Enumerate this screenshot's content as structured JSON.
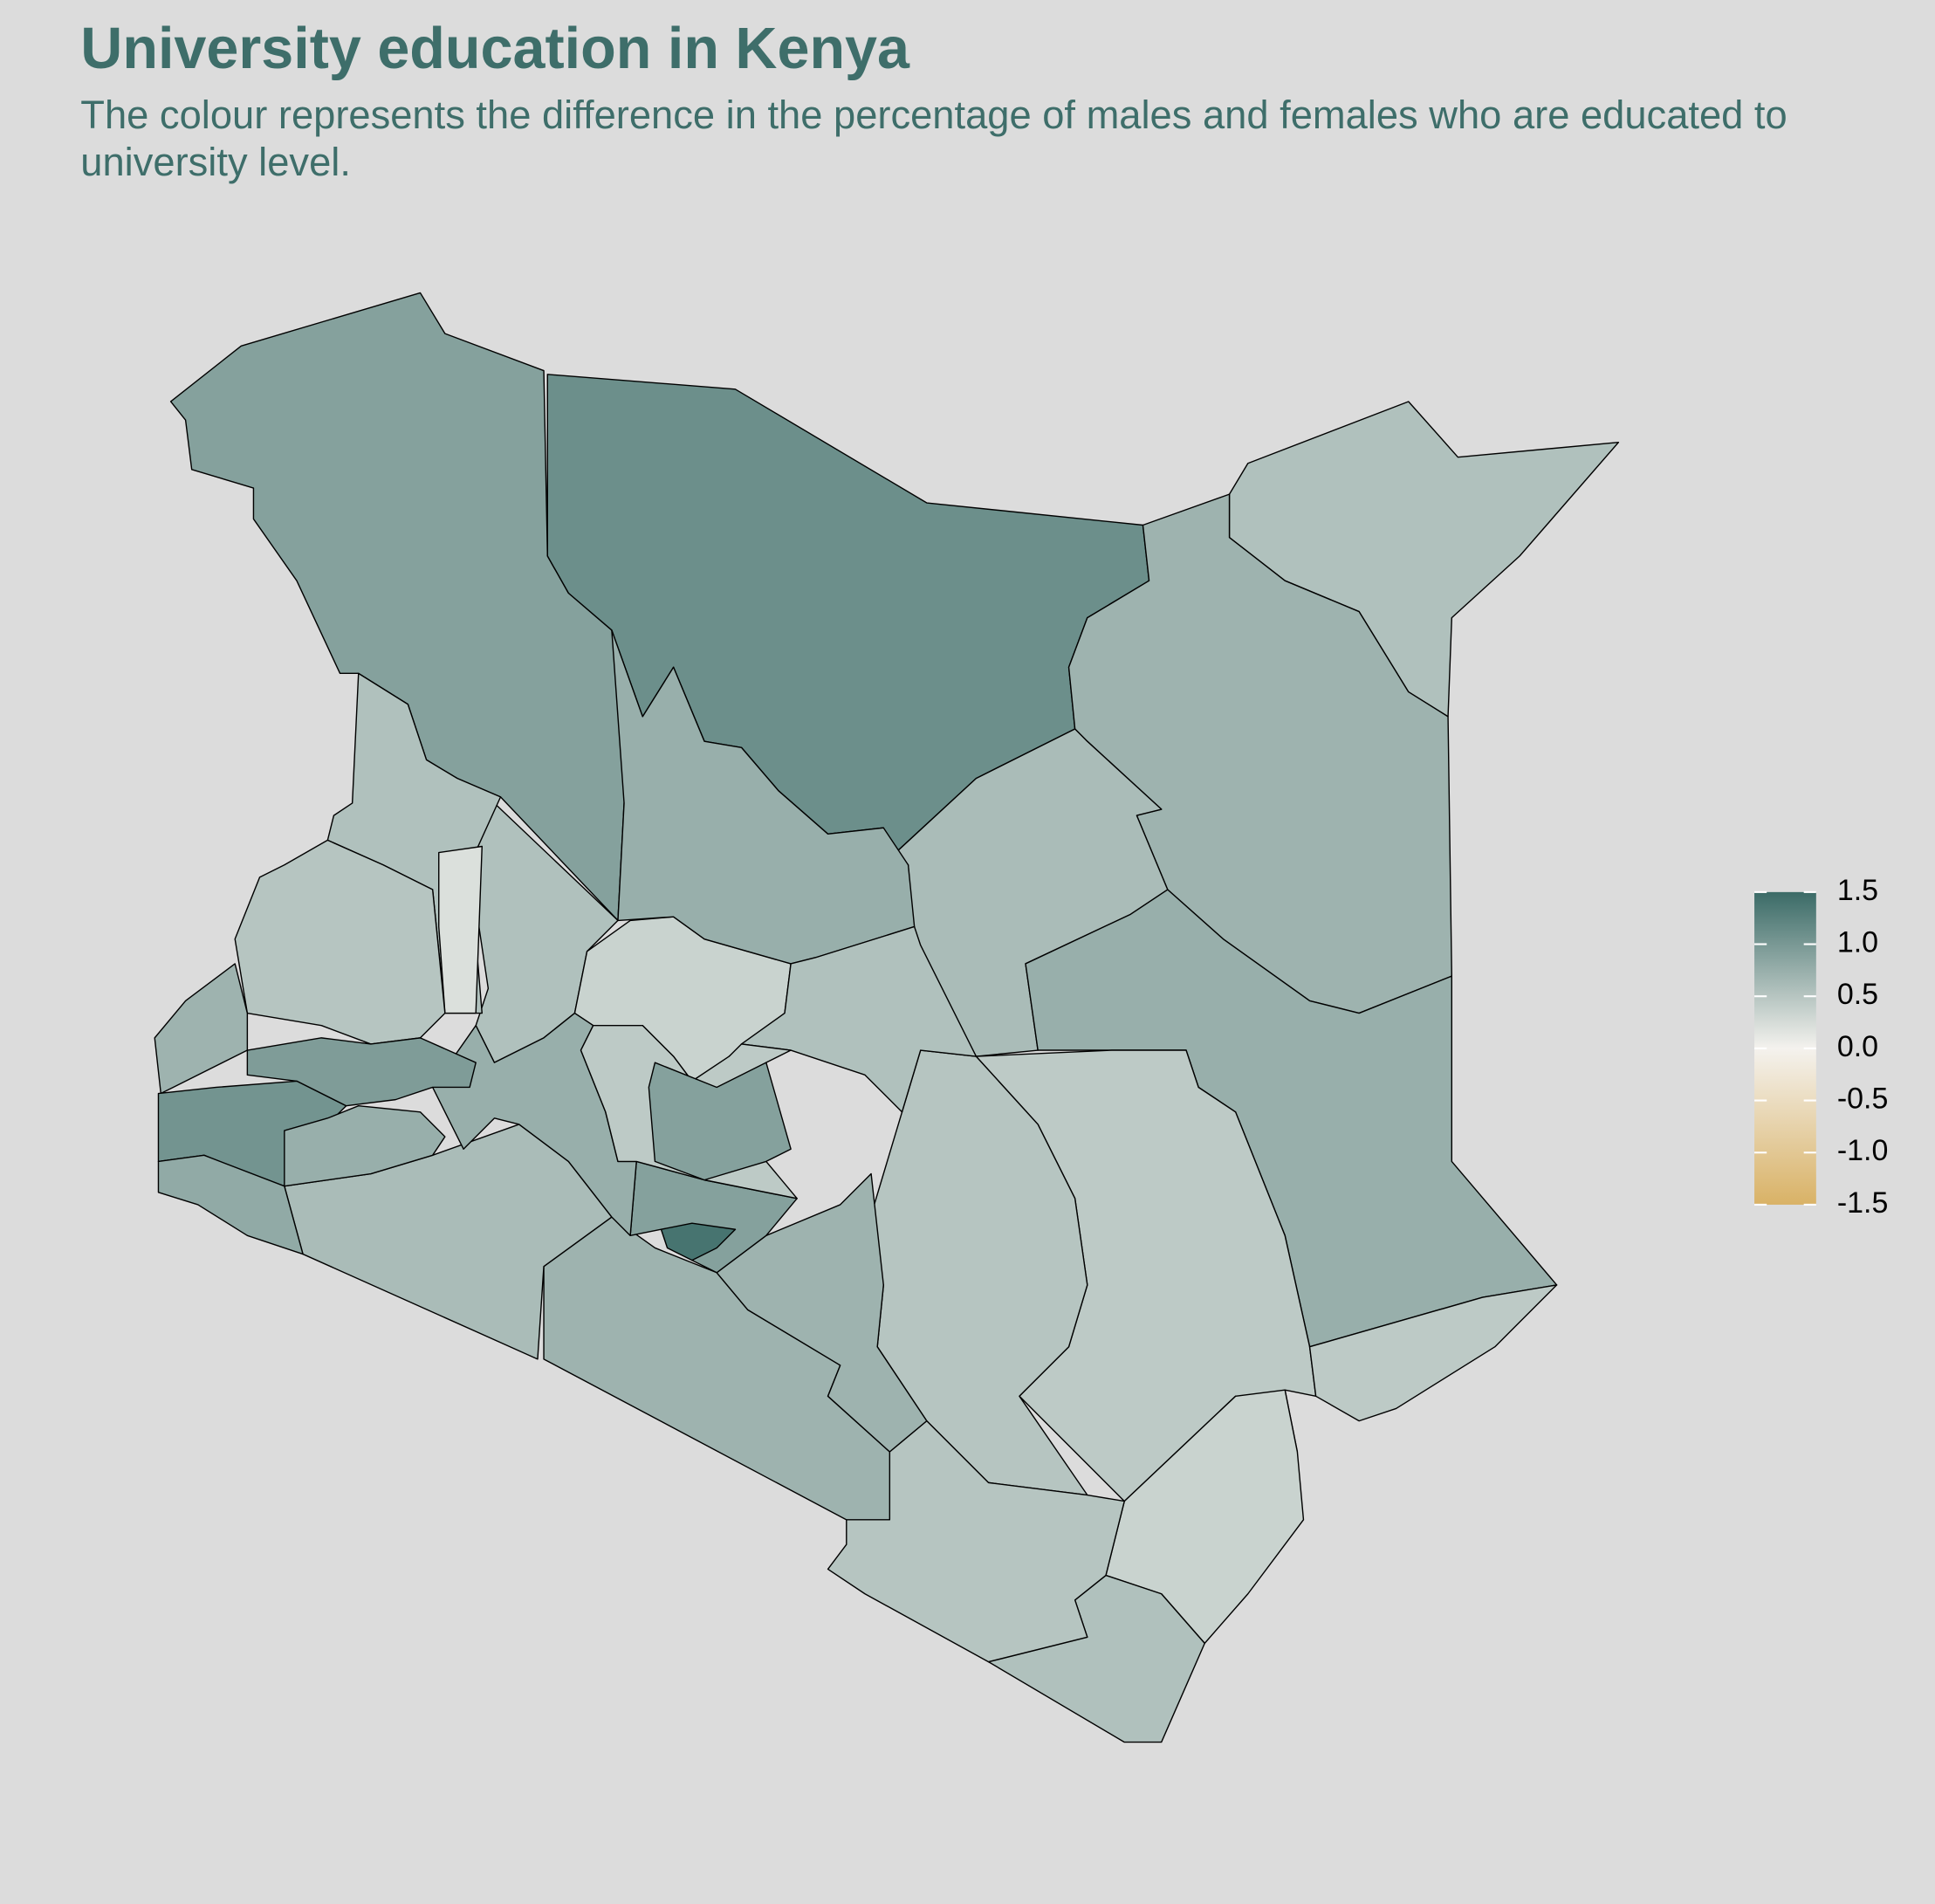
{
  "chart_data": {
    "type": "choropleth",
    "title": "University education in Kenya",
    "subtitle": "The colour represents the difference in the percentage of males and females who are educated to university level.",
    "values": [
      0.9,
      1.1,
      0.55,
      0.7,
      0.6,
      0.75,
      0.45,
      0.5,
      0.45,
      0.35,
      0.55,
      0.5,
      0.7,
      0.6,
      0.7,
      0.9,
      1.4,
      0.55,
      0.35,
      0.75,
      0.55,
      0.75,
      0.45,
      0.9,
      0.55,
      0.2,
      0.5,
      0.7,
      0.95,
      1.05,
      0.8,
      0.75
    ],
    "colors": [
      "#d9b266",
      "#f4f2ee",
      "#3b6b67"
    ],
    "clim": [
      -1.5,
      1.5
    ],
    "cticks": [
      1.5,
      {
        "value": 1,
        "label": "1.0"
      },
      0.5,
      {
        "value": 0,
        "label": "0.0"
      },
      -0.5,
      {
        "value": -1,
        "label": "-1.0"
      },
      -1.5
    ]
  }
}
